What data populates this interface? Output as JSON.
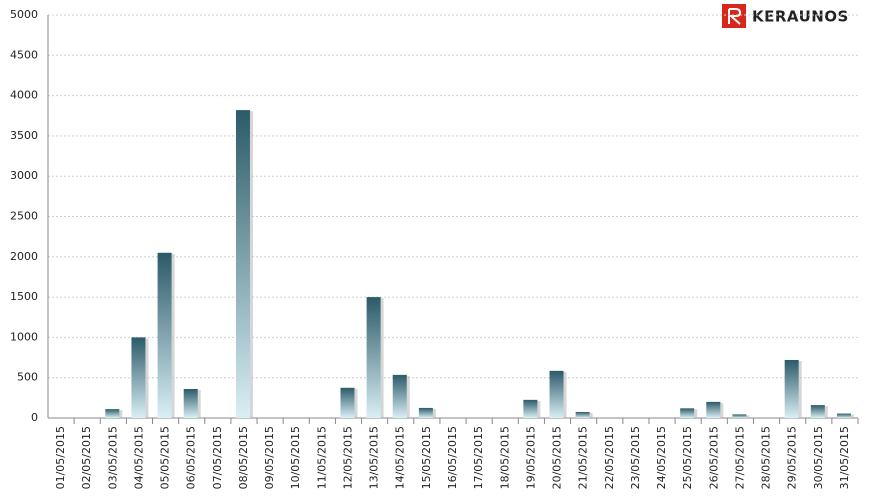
{
  "chart_data": {
    "type": "bar",
    "logo": "KERAUNOS",
    "categories": [
      "01/05/2015",
      "02/05/2015",
      "03/05/2015",
      "04/05/2015",
      "05/05/2015",
      "06/05/2015",
      "07/05/2015",
      "08/05/2015",
      "09/05/2015",
      "10/05/2015",
      "11/05/2015",
      "12/05/2015",
      "13/05/2015",
      "14/05/2015",
      "15/05/2015",
      "16/05/2015",
      "17/05/2015",
      "18/05/2015",
      "19/05/2015",
      "20/05/2015",
      "21/05/2015",
      "22/05/2015",
      "23/05/2015",
      "24/05/2015",
      "25/05/2015",
      "26/05/2015",
      "27/05/2015",
      "28/05/2015",
      "29/05/2015",
      "30/05/2015",
      "31/05/2015"
    ],
    "values": [
      0,
      0,
      110,
      1000,
      2050,
      360,
      0,
      3820,
      0,
      0,
      0,
      375,
      1500,
      535,
      125,
      0,
      0,
      0,
      225,
      585,
      75,
      0,
      0,
      0,
      120,
      200,
      45,
      0,
      720,
      160,
      55
    ],
    "color_top": "#2b5a68",
    "color_bottom": "#d9eff5",
    "ylim": [
      0,
      5000
    ],
    "yticks": [
      0,
      500,
      1000,
      1500,
      2000,
      2500,
      3000,
      3500,
      4000,
      4500,
      5000
    ],
    "grid": true
  }
}
